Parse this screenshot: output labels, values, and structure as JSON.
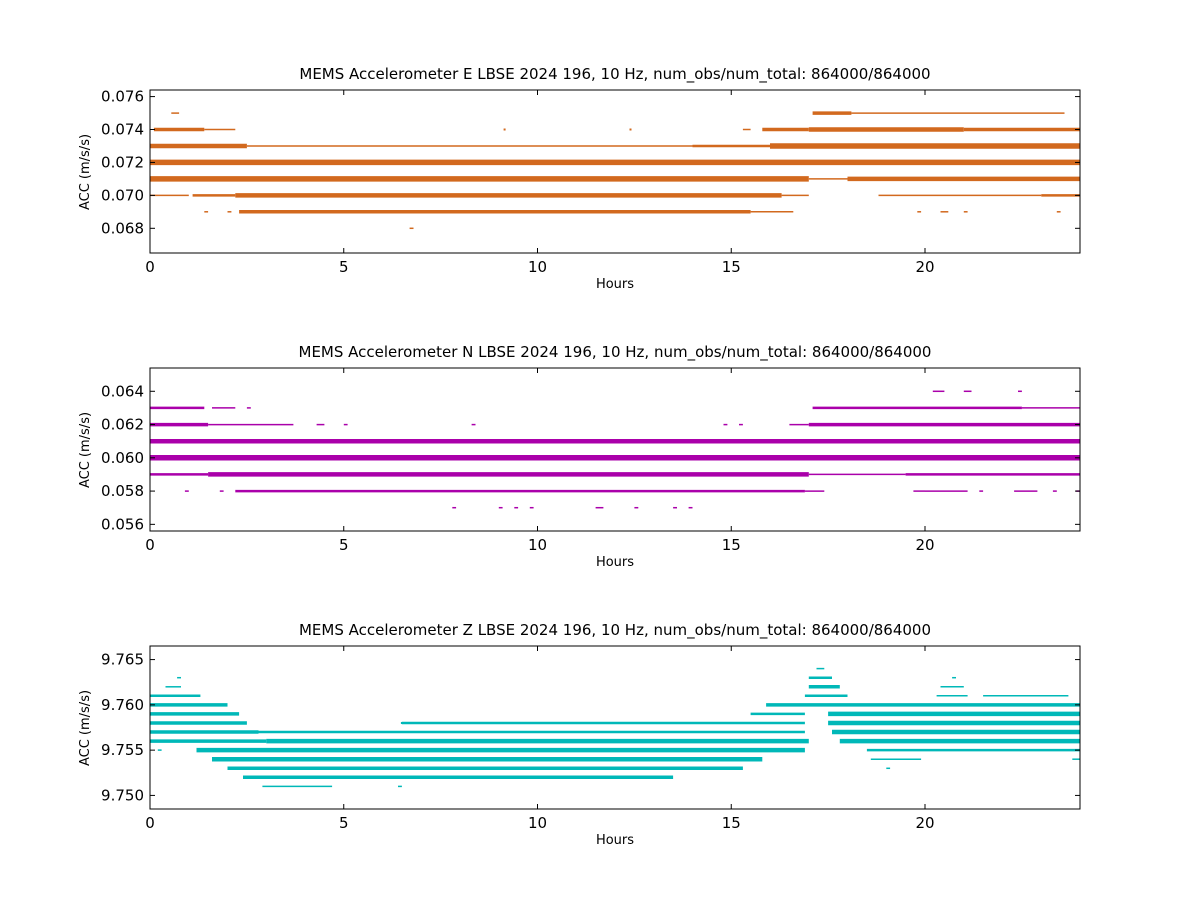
{
  "chart_data": [
    {
      "type": "scatter",
      "title": "MEMS Accelerometer E LBSE 2024 196, 10 Hz, num_obs/num_total: 864000/864000",
      "xlabel": "Hours",
      "ylabel": "ACC (m/s/s)",
      "xlim": [
        0,
        24
      ],
      "ylim": [
        0.0665,
        0.0764
      ],
      "xticks": [
        0,
        5,
        10,
        15,
        20
      ],
      "yticks": [
        0.068,
        0.07,
        0.072,
        0.074,
        0.076
      ],
      "ytick_decimals": 3,
      "grid": false,
      "color": "#d2691e",
      "series": [
        {
          "y": 0.075,
          "segments": [
            [
              0.55,
              0.75,
              1
            ],
            [
              17.1,
              18.1,
              3
            ],
            [
              18.1,
              21.2,
              1
            ],
            [
              21.2,
              23.6,
              1
            ]
          ]
        },
        {
          "y": 0.074,
          "segments": [
            [
              0.1,
              1.4,
              3
            ],
            [
              1.4,
              2.2,
              1
            ],
            [
              15.3,
              15.5,
              1
            ],
            [
              15.8,
              17.0,
              3
            ],
            [
              17.0,
              21.0,
              4
            ],
            [
              21.0,
              24.0,
              3
            ]
          ]
        },
        {
          "y": 0.073,
          "segments": [
            [
              0.0,
              2.5,
              4
            ],
            [
              2.5,
              8.0,
              1
            ],
            [
              8.0,
              14.0,
              1
            ],
            [
              14.0,
              16.0,
              2
            ],
            [
              16.0,
              24.0,
              5
            ]
          ]
        },
        {
          "y": 0.072,
          "segments": [
            [
              0.0,
              24.0,
              5
            ]
          ]
        },
        {
          "y": 0.071,
          "segments": [
            [
              0.0,
              17.0,
              5
            ],
            [
              17.0,
              18.0,
              1
            ],
            [
              18.0,
              24.0,
              4
            ]
          ]
        },
        {
          "y": 0.07,
          "segments": [
            [
              0.0,
              1.0,
              1
            ],
            [
              1.1,
              2.2,
              2
            ],
            [
              2.2,
              16.3,
              4
            ],
            [
              16.3,
              17.0,
              1
            ],
            [
              18.8,
              23.0,
              1
            ],
            [
              23.0,
              24.0,
              2
            ]
          ]
        },
        {
          "y": 0.069,
          "segments": [
            [
              1.4,
              1.5,
              1
            ],
            [
              2.0,
              2.1,
              1
            ],
            [
              2.3,
              15.5,
              3
            ],
            [
              15.5,
              16.6,
              1
            ],
            [
              19.8,
              19.9,
              1
            ],
            [
              20.4,
              20.6,
              1
            ],
            [
              21.0,
              21.1,
              1
            ],
            [
              23.4,
              23.5,
              1
            ]
          ]
        },
        {
          "y": 0.068,
          "segments": [
            [
              6.7,
              6.8,
              1
            ]
          ]
        }
      ],
      "scatter_points": [
        [
          9.15,
          0.074
        ],
        [
          12.4,
          0.074
        ]
      ]
    },
    {
      "type": "scatter",
      "title": "MEMS Accelerometer N LBSE 2024 196, 10 Hz, num_obs/num_total: 864000/864000",
      "xlabel": "Hours",
      "ylabel": "ACC (m/s/s)",
      "xlim": [
        0,
        24
      ],
      "ylim": [
        0.0556,
        0.0654
      ],
      "xticks": [
        0,
        5,
        10,
        15,
        20
      ],
      "yticks": [
        0.056,
        0.058,
        0.06,
        0.062,
        0.064
      ],
      "ytick_decimals": 3,
      "grid": false,
      "color": "#aa00aa",
      "series": [
        {
          "y": 0.064,
          "segments": [
            [
              20.2,
              20.5,
              1
            ],
            [
              21.0,
              21.2,
              1
            ],
            [
              22.4,
              22.5,
              1
            ]
          ]
        },
        {
          "y": 0.063,
          "segments": [
            [
              0.0,
              1.4,
              2
            ],
            [
              1.6,
              2.2,
              1
            ],
            [
              2.5,
              2.6,
              1
            ],
            [
              17.1,
              22.5,
              2
            ],
            [
              22.5,
              24.0,
              1
            ]
          ]
        },
        {
          "y": 0.062,
          "segments": [
            [
              0.0,
              1.5,
              3
            ],
            [
              1.5,
              3.7,
              1
            ],
            [
              4.3,
              4.5,
              1
            ],
            [
              5.0,
              5.1,
              1
            ],
            [
              8.3,
              8.4,
              1
            ],
            [
              14.8,
              14.9,
              1
            ],
            [
              15.2,
              15.3,
              1
            ],
            [
              16.5,
              17.0,
              1
            ],
            [
              17.0,
              24.0,
              3
            ]
          ]
        },
        {
          "y": 0.061,
          "segments": [
            [
              0.0,
              24.0,
              4
            ]
          ]
        },
        {
          "y": 0.06,
          "segments": [
            [
              0.0,
              24.0,
              5
            ]
          ]
        },
        {
          "y": 0.059,
          "segments": [
            [
              0.0,
              1.5,
              2
            ],
            [
              1.5,
              17.0,
              4
            ],
            [
              17.0,
              19.5,
              1
            ],
            [
              19.5,
              24.0,
              2
            ]
          ]
        },
        {
          "y": 0.058,
          "segments": [
            [
              0.9,
              1.0,
              1
            ],
            [
              1.8,
              1.9,
              1
            ],
            [
              2.2,
              16.9,
              2
            ],
            [
              16.9,
              17.4,
              1
            ],
            [
              19.7,
              20.0,
              1
            ],
            [
              20.0,
              21.1,
              1
            ],
            [
              21.4,
              21.5,
              1
            ],
            [
              22.3,
              22.9,
              1
            ],
            [
              23.3,
              23.4,
              1
            ],
            [
              23.9,
              24.0,
              1
            ]
          ]
        },
        {
          "y": 0.057,
          "segments": [
            [
              7.8,
              7.9,
              1
            ],
            [
              9.0,
              9.1,
              1
            ],
            [
              9.4,
              9.5,
              1
            ],
            [
              9.8,
              9.9,
              1
            ],
            [
              11.5,
              11.7,
              1
            ],
            [
              12.5,
              12.6,
              1
            ],
            [
              13.5,
              13.6,
              1
            ],
            [
              13.9,
              14.0,
              1
            ]
          ]
        }
      ],
      "scatter_points": []
    },
    {
      "type": "scatter",
      "title": "MEMS Accelerometer Z LBSE 2024 196, 10 Hz, num_obs/num_total: 864000/864000",
      "xlabel": "Hours",
      "ylabel": "ACC (m/s/s)",
      "xlim": [
        0,
        24
      ],
      "ylim": [
        9.7485,
        9.7665
      ],
      "xticks": [
        0,
        5,
        10,
        15,
        20
      ],
      "yticks": [
        9.75,
        9.755,
        9.76,
        9.765
      ],
      "ytick_decimals": 3,
      "grid": false,
      "color": "#00b8b8",
      "series": [
        {
          "y": 9.764,
          "segments": [
            [
              17.2,
              17.4,
              1
            ]
          ]
        },
        {
          "y": 9.763,
          "segments": [
            [
              0.7,
              0.8,
              1
            ],
            [
              17.0,
              17.6,
              2
            ],
            [
              20.7,
              20.8,
              1
            ]
          ]
        },
        {
          "y": 9.762,
          "segments": [
            [
              0.4,
              0.8,
              1
            ],
            [
              17.0,
              17.8,
              3
            ],
            [
              20.4,
              21.0,
              1
            ]
          ]
        },
        {
          "y": 9.761,
          "segments": [
            [
              0.0,
              1.3,
              2
            ],
            [
              16.9,
              18.0,
              2
            ],
            [
              20.3,
              21.1,
              1
            ],
            [
              21.5,
              23.7,
              1
            ]
          ]
        },
        {
          "y": 9.76,
          "segments": [
            [
              0.0,
              2.0,
              3
            ],
            [
              15.9,
              24.0,
              3
            ]
          ]
        },
        {
          "y": 9.759,
          "segments": [
            [
              0.0,
              2.3,
              3
            ],
            [
              15.5,
              16.9,
              2
            ],
            [
              17.5,
              24.0,
              4
            ]
          ]
        },
        {
          "y": 9.758,
          "segments": [
            [
              0.0,
              2.5,
              3
            ],
            [
              6.5,
              16.9,
              2
            ],
            [
              17.5,
              24.0,
              4
            ]
          ]
        },
        {
          "y": 9.757,
          "segments": [
            [
              0.0,
              2.8,
              3
            ],
            [
              2.8,
              16.9,
              2
            ],
            [
              17.6,
              24.0,
              4
            ]
          ]
        },
        {
          "y": 9.756,
          "segments": [
            [
              0.0,
              3.0,
              3
            ],
            [
              3.0,
              17.0,
              4
            ],
            [
              17.8,
              24.0,
              4
            ]
          ]
        },
        {
          "y": 9.755,
          "segments": [
            [
              0.2,
              0.3,
              1
            ],
            [
              1.2,
              16.9,
              4
            ],
            [
              18.5,
              24.0,
              2
            ]
          ]
        },
        {
          "y": 9.754,
          "segments": [
            [
              1.6,
              15.8,
              4
            ],
            [
              18.6,
              19.9,
              1
            ],
            [
              23.8,
              24.0,
              1
            ]
          ]
        },
        {
          "y": 9.753,
          "segments": [
            [
              2.0,
              15.3,
              3
            ],
            [
              19.0,
              19.1,
              1
            ]
          ]
        },
        {
          "y": 9.752,
          "segments": [
            [
              2.4,
              13.5,
              3
            ]
          ]
        },
        {
          "y": 9.751,
          "segments": [
            [
              2.9,
              4.7,
              1
            ],
            [
              6.4,
              6.5,
              1
            ]
          ]
        }
      ],
      "scatter_points": [
        [
          6.5,
          9.758
        ],
        [
          8.5,
          9.758
        ],
        [
          10.3,
          9.758
        ]
      ]
    }
  ]
}
